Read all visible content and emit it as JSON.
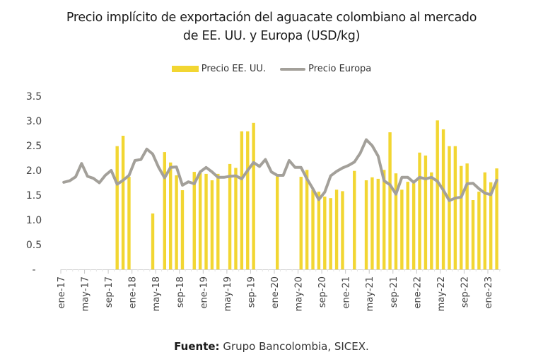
{
  "chart_data": {
    "type": "bar+line",
    "title_line1": "Precio implícito de exportación del aguacate colombiano al mercado",
    "title_line2": "de EE. UU. y Europa (USD/kg)",
    "xlabel": "",
    "ylabel": "",
    "ylim": [
      0,
      3.5
    ],
    "yticks": [
      0,
      0.5,
      1.0,
      1.5,
      2.0,
      2.5,
      3.0,
      3.5
    ],
    "ytick_labels": [
      "-",
      "0.5",
      "1.0",
      "1.5",
      "2.0",
      "2.5",
      "3.0",
      "3.5"
    ],
    "grid": false,
    "legend_position": "top-center",
    "months": [
      "ene-17",
      "feb-17",
      "mar-17",
      "abr-17",
      "may-17",
      "jun-17",
      "jul-17",
      "ago-17",
      "sep-17",
      "oct-17",
      "nov-17",
      "dic-17",
      "ene-18",
      "feb-18",
      "mar-18",
      "abr-18",
      "may-18",
      "jun-18",
      "jul-18",
      "ago-18",
      "sep-18",
      "oct-18",
      "nov-18",
      "dic-18",
      "ene-19",
      "feb-19",
      "mar-19",
      "abr-19",
      "may-19",
      "jun-19",
      "jul-19",
      "ago-19",
      "sep-19",
      "oct-19",
      "nov-19",
      "dic-19",
      "ene-20",
      "feb-20",
      "mar-20",
      "abr-20",
      "may-20",
      "jun-20",
      "jul-20",
      "ago-20",
      "sep-20",
      "oct-20",
      "nov-20",
      "dic-20",
      "ene-21",
      "feb-21",
      "mar-21",
      "abr-21",
      "may-21",
      "jun-21",
      "jul-21",
      "ago-21",
      "sep-21",
      "oct-21",
      "nov-21",
      "dic-21",
      "ene-22",
      "feb-22",
      "mar-22",
      "abr-22",
      "may-22",
      "jun-22",
      "jul-22",
      "ago-22",
      "sep-22",
      "oct-22",
      "nov-22",
      "dic-22",
      "ene-23",
      "feb-23"
    ],
    "xtick_labels": [
      "ene-17",
      "may-17",
      "sep-17",
      "ene-18",
      "may-18",
      "sep-18",
      "ene-19",
      "may-19",
      "sep-19",
      "ene-20",
      "may-20",
      "sep-20",
      "ene-21",
      "may-21",
      "sep-21",
      "ene-22",
      "may-22",
      "sep-22",
      "ene-23"
    ],
    "series": [
      {
        "name": "Precio EE. UU.",
        "type": "bar",
        "color": "#F2D632",
        "values": [
          null,
          null,
          null,
          null,
          null,
          null,
          null,
          null,
          null,
          2.49,
          2.7,
          1.87,
          null,
          null,
          null,
          1.13,
          null,
          2.37,
          2.16,
          1.9,
          1.6,
          null,
          1.97,
          1.95,
          1.93,
          1.8,
          1.93,
          null,
          2.13,
          2.05,
          2.79,
          2.79,
          2.96,
          null,
          null,
          null,
          1.88,
          null,
          null,
          null,
          1.87,
          2.01,
          1.61,
          1.57,
          1.47,
          1.44,
          1.61,
          1.58,
          null,
          1.99,
          null,
          1.8,
          1.86,
          1.83,
          2.01,
          2.77,
          1.94,
          1.61,
          1.77,
          1.74,
          2.36,
          2.3,
          1.96,
          3.01,
          2.83,
          2.49,
          2.49,
          2.09,
          2.14,
          1.4,
          1.57,
          1.96,
          1.76,
          2.04
        ]
      },
      {
        "name": "Precio Europa",
        "type": "line",
        "color": "#A3A09A",
        "values": [
          1.76,
          1.79,
          1.87,
          2.14,
          1.88,
          1.84,
          1.75,
          1.9,
          2.0,
          1.72,
          1.8,
          1.9,
          2.2,
          2.22,
          2.43,
          2.33,
          2.06,
          1.85,
          2.06,
          2.07,
          1.7,
          1.77,
          1.73,
          1.97,
          2.06,
          1.97,
          1.86,
          1.86,
          1.88,
          1.89,
          1.83,
          2.0,
          2.16,
          2.08,
          2.22,
          1.97,
          1.9,
          1.9,
          2.2,
          2.06,
          2.06,
          1.83,
          1.63,
          1.41,
          1.56,
          1.89,
          1.98,
          2.05,
          2.1,
          2.17,
          2.35,
          2.62,
          2.5,
          2.29,
          1.79,
          1.71,
          1.52,
          1.86,
          1.86,
          1.76,
          1.86,
          1.83,
          1.86,
          1.78,
          1.6,
          1.39,
          1.44,
          1.46,
          1.73,
          1.74,
          1.63,
          1.54,
          1.51,
          1.8
        ]
      }
    ]
  },
  "footer": {
    "source_label": "Fuente:",
    "source_text": " Grupo Bancolombia, SICEX."
  }
}
